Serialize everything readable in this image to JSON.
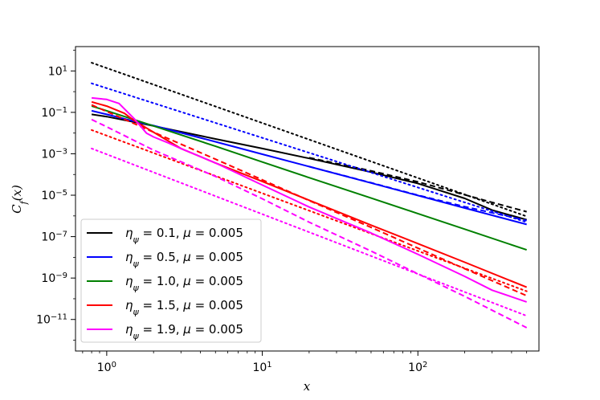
{
  "chart_data": {
    "type": "line",
    "title": "",
    "xlabel": "x",
    "ylabel": "C_f(x)",
    "xscale": "log",
    "yscale": "log",
    "xlim": [
      0.63,
      600
    ],
    "ylim": [
      3e-13,
      150
    ],
    "x_major_ticks": [
      1,
      10,
      100
    ],
    "x_tick_labels": [
      {
        "base": "10",
        "exp": "0"
      },
      {
        "base": "10",
        "exp": "1"
      },
      {
        "base": "10",
        "exp": "2"
      }
    ],
    "y_major_ticks": [
      1e-11,
      1e-09,
      1e-07,
      1e-05,
      0.001,
      0.1,
      10
    ],
    "y_tick_labels": [
      {
        "base": "10",
        "exp": "−11"
      },
      {
        "base": "10",
        "exp": "−9"
      },
      {
        "base": "10",
        "exp": "−7"
      },
      {
        "base": "10",
        "exp": "−5"
      },
      {
        "base": "10",
        "exp": "−3"
      },
      {
        "base": "10",
        "exp": "−1"
      },
      {
        "base": "10",
        "exp": "1"
      }
    ],
    "legend_location": "lower-left",
    "legend_symbol": "η",
    "legend_subscript": "ψ",
    "series": [
      {
        "name": "η_ψ = 0.1, μ = 0.005",
        "eta": "0.1",
        "mu": "0.005",
        "color": "#000000",
        "solid": [
          [
            0.8,
            0.08
          ],
          [
            1,
            0.062
          ],
          [
            2,
            0.022
          ],
          [
            5,
            0.0052
          ],
          [
            10,
            0.0018
          ],
          [
            20,
            0.0006
          ],
          [
            50,
            0.00013
          ],
          [
            100,
            3.7e-05
          ],
          [
            200,
            7e-06
          ],
          [
            300,
            1.9e-06
          ],
          [
            500,
            6.5e-07
          ]
        ],
        "dashed": [
          [
            20,
            0.00065
          ],
          [
            50,
            0.00015
          ],
          [
            100,
            4.4e-05
          ],
          [
            200,
            1.05e-05
          ],
          [
            300,
            4.5e-06
          ],
          [
            500,
            1.6e-06
          ]
        ],
        "dotted": [
          [
            0.8,
            25
          ],
          [
            500,
            9.5e-07
          ]
        ]
      },
      {
        "name": "η_ψ = 0.5, μ = 0.005",
        "eta": "0.5",
        "mu": "0.005",
        "color": "#0000ff",
        "solid": [
          [
            0.8,
            0.12
          ],
          [
            1,
            0.08
          ],
          [
            1.5,
            0.037
          ],
          [
            2,
            0.023
          ],
          [
            5,
            0.0038
          ],
          [
            10,
            0.00095
          ],
          [
            20,
            0.00024
          ],
          [
            50,
            3.9e-05
          ],
          [
            100,
            9.7e-06
          ],
          [
            200,
            2.4e-06
          ],
          [
            500,
            3.9e-07
          ]
        ],
        "dashed": [
          [
            20,
            0.00024
          ],
          [
            50,
            4e-05
          ],
          [
            100,
            1e-05
          ],
          [
            200,
            2.8e-06
          ],
          [
            500,
            6e-07
          ]
        ],
        "dotted": [
          [
            0.8,
            2.5
          ],
          [
            500,
            5e-07
          ]
        ]
      },
      {
        "name": "η_ψ = 1.0, μ = 0.005",
        "eta": "1.0",
        "mu": "0.005",
        "color": "#008000",
        "solid": [
          [
            0.8,
            0.2
          ],
          [
            1,
            0.12
          ],
          [
            2,
            0.022
          ],
          [
            5,
            0.0023
          ],
          [
            10,
            0.0004
          ],
          [
            20,
            7e-05
          ],
          [
            50,
            7.3e-06
          ],
          [
            100,
            1.3e-06
          ],
          [
            200,
            2.3e-07
          ],
          [
            500,
            2.3e-08
          ]
        ],
        "dashed": [],
        "dotted": []
      },
      {
        "name": "η_ψ = 1.5, μ = 0.005",
        "eta": "1.5",
        "mu": "0.005",
        "color": "#ff0000",
        "solid": [
          [
            0.8,
            0.32
          ],
          [
            1,
            0.2
          ],
          [
            1.3,
            0.09
          ],
          [
            1.5,
            0.04
          ],
          [
            2,
            0.011
          ],
          [
            3,
            0.0018
          ],
          [
            5,
            0.00036
          ],
          [
            10,
            4.6e-05
          ],
          [
            20,
            5.7e-06
          ],
          [
            50,
            3.6e-07
          ],
          [
            100,
            4.6e-08
          ],
          [
            200,
            5.8e-09
          ],
          [
            500,
            3.6e-10
          ]
        ],
        "dashed": [
          [
            0.8,
            0.23
          ],
          [
            1,
            0.11
          ],
          [
            2,
            0.011
          ],
          [
            5,
            0.00055
          ],
          [
            10,
            5.5e-05
          ],
          [
            20,
            5.5e-06
          ],
          [
            50,
            2.8e-07
          ],
          [
            100,
            2.8e-08
          ],
          [
            200,
            2.8e-09
          ],
          [
            500,
            1.4e-10
          ]
        ],
        "dotted": [
          [
            0.8,
            0.014
          ],
          [
            500,
            2.3e-10
          ]
        ]
      },
      {
        "name": "η_ψ = 1.9, μ = 0.005",
        "eta": "1.9",
        "mu": "0.005",
        "color": "#ff00ff",
        "solid": [
          [
            0.8,
            0.5
          ],
          [
            1,
            0.42
          ],
          [
            1.2,
            0.27
          ],
          [
            1.5,
            0.05
          ],
          [
            1.8,
            0.01
          ],
          [
            2,
            0.0065
          ],
          [
            2.5,
            0.0033
          ],
          [
            3,
            0.0018
          ],
          [
            5,
            0.00036
          ],
          [
            10,
            3.1e-05
          ],
          [
            20,
            2.7e-06
          ],
          [
            50,
            1.5e-07
          ],
          [
            100,
            1.4e-08
          ],
          [
            200,
            1.2e-09
          ],
          [
            300,
            2.6e-10
          ],
          [
            500,
            7e-11
          ]
        ],
        "dashed": [
          [
            0.8,
            0.045
          ],
          [
            1,
            0.02
          ],
          [
            2,
            0.0015
          ],
          [
            5,
            8e-05
          ],
          [
            10,
            6.7e-06
          ],
          [
            20,
            5e-07
          ],
          [
            50,
            2e-08
          ],
          [
            100,
            1.6e-09
          ],
          [
            200,
            1.3e-10
          ],
          [
            500,
            4e-12
          ]
        ],
        "dotted": [
          [
            0.8,
            0.0018
          ],
          [
            500,
            1.5e-11
          ]
        ]
      }
    ]
  }
}
